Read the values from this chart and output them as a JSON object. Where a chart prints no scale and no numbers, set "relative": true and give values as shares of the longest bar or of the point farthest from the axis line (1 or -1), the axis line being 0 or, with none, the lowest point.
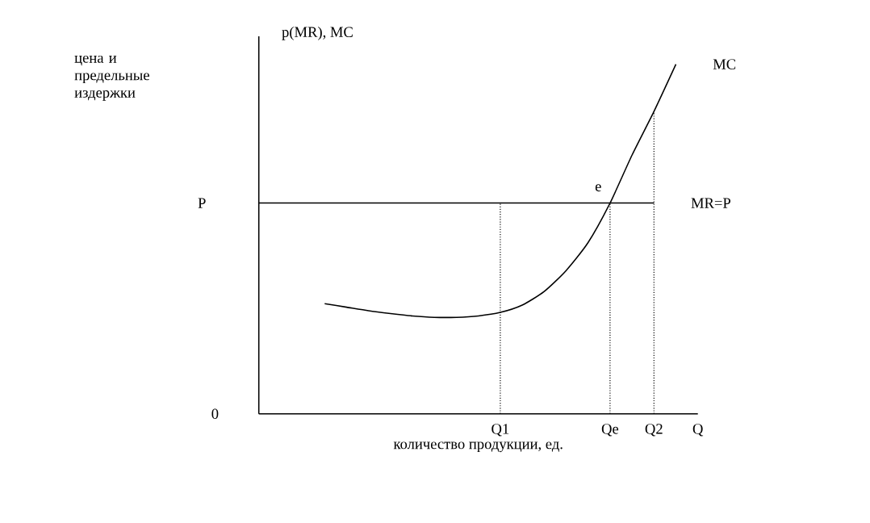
{
  "chart_data": {
    "type": "line",
    "relative": true,
    "xlabel": "количество продукции, ед.",
    "categories": [
      null,
      null,
      null,
      null,
      null,
      null,
      null,
      null,
      null,
      null,
      null,
      "Q1",
      null,
      null,
      null,
      null,
      "Qe",
      null,
      "Q2",
      null,
      "Q"
    ],
    "series": [
      {
        "name": "MC",
        "color": "#000000",
        "values": [
          null,
          null,
          null,
          0.315,
          0.305,
          0.295,
          0.287,
          0.28,
          0.276,
          0.276,
          0.28,
          0.29,
          0.311,
          0.35,
          0.41,
          0.49,
          0.603,
          0.74,
          0.865,
          1,
          null
        ]
      },
      {
        "name": "MR=P",
        "color": "#000000",
        "values": [
          0.603,
          0.603,
          0.603,
          0.603,
          0.603,
          0.603,
          0.603,
          0.603,
          0.603,
          0.603,
          0.603,
          0.603,
          0.603,
          0.603,
          0.603,
          0.603,
          0.603,
          0.603,
          0.603,
          null,
          null
        ]
      }
    ],
    "ref_lines": [
      {
        "axis": "x",
        "value": "Q1",
        "color": "#000000",
        "line_style": "dotted"
      },
      {
        "axis": "x",
        "value": "Qe",
        "color": "#000000",
        "line_style": "dotted"
      },
      {
        "axis": "x",
        "value": "Q2",
        "color": "#000000",
        "line_style": "dotted"
      }
    ],
    "annotations": [
      "цена и предельные издержки",
      "p(MR), MC",
      "P",
      "0",
      {
        "text": "e",
        "x": "Qe",
        "y": 0.603
      }
    ]
  }
}
